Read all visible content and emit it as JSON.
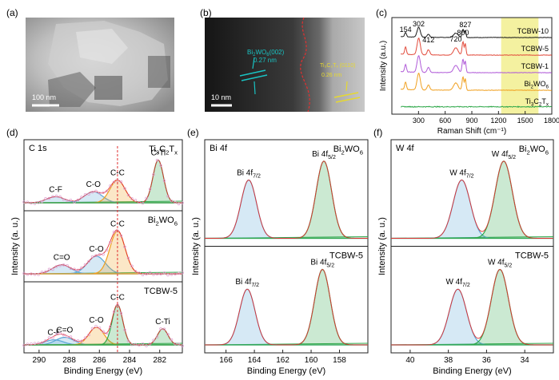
{
  "panel_labels": [
    "(a)",
    "(b)",
    "(c)",
    "(d)",
    "(e)",
    "(f)"
  ],
  "tem_a": {
    "scalebar": "100 nm"
  },
  "tem_b": {
    "scalebar": "10 nm",
    "bwo_label_main": "Bi",
    "bwo_label_sub1": "2",
    "bwo_label_mid": "WO",
    "bwo_label_sub2": "6",
    "bwo_label_plane": "(002)",
    "bwo_spacing": "0.27 nm",
    "tc_label": "Ti₃C₂Tₓ (0110)",
    "tc_spacing": "0.26 nm"
  },
  "colors": {
    "teal": "#19c3c3",
    "yellow": "#e6d830",
    "raman_highlight": "#f4f1a0",
    "fit_blue": "#5aa6d6",
    "fit_green": "#2fa84a",
    "fit_orange": "#f0a020",
    "fit_red": "#e03030",
    "data_pink": "#e0a0d0"
  },
  "chart_data": [
    {
      "id": "c",
      "type": "line",
      "xlabel": "Raman Shift (cm⁻¹)",
      "ylabel": "Intensity (a.u.)",
      "xlim": [
        0,
        1800
      ],
      "xticks": [
        300,
        600,
        900,
        1200,
        1500,
        1800
      ],
      "highlight": [
        1230,
        1650
      ],
      "peak_labels": [
        {
          "x": 154,
          "text": "154"
        },
        {
          "x": 302,
          "text": "302"
        },
        {
          "x": 412,
          "text": "412"
        },
        {
          "x": 720,
          "text": "720"
        },
        {
          "x": 800,
          "text": "800"
        },
        {
          "x": 827,
          "text": "827"
        }
      ],
      "series": [
        {
          "name": "TCBW-10",
          "color": "#1a1a1a",
          "offset": 4
        },
        {
          "name": "TCBW-5",
          "color": "#e24a3b",
          "offset": 3
        },
        {
          "name": "TCBW-1",
          "color": "#b05ad8",
          "offset": 2
        },
        {
          "name": "Bi₂WO₆",
          "color": "#f0a020",
          "offset": 1
        },
        {
          "name": "Ti₃C₂Tₓ",
          "color": "#2fa84a",
          "offset": 0
        }
      ]
    },
    {
      "id": "d",
      "type": "line",
      "title": "C 1s",
      "xlabel": "Binding Energy (eV)",
      "ylabel": "Intensity (a. u.)",
      "xlim": [
        291,
        280.5
      ],
      "xticks": [
        290,
        288,
        286,
        284,
        282
      ],
      "reference_line": 284.8,
      "subpanels": [
        {
          "name": "Ti₃C₂Tₓ",
          "peaks": [
            {
              "center": 288.9,
              "height": 0.12,
              "label": "C-F"
            },
            {
              "center": 286.4,
              "height": 0.22,
              "label": "C-O"
            },
            {
              "center": 284.8,
              "height": 0.45,
              "label": "C-C"
            },
            {
              "center": 282.1,
              "height": 0.85,
              "label": "C-Ti"
            }
          ]
        },
        {
          "name": "Bi₂WO₆",
          "peaks": [
            {
              "center": 288.5,
              "height": 0.18,
              "label": "C=O"
            },
            {
              "center": 286.2,
              "height": 0.35,
              "label": "C-O"
            },
            {
              "center": 284.8,
              "height": 0.85,
              "label": "C-C"
            }
          ]
        },
        {
          "name": "TCBW-5",
          "peaks": [
            {
              "center": 289.0,
              "height": 0.1,
              "label": "C-F"
            },
            {
              "center": 288.3,
              "height": 0.15,
              "label": "C=O"
            },
            {
              "center": 286.2,
              "height": 0.35,
              "label": "C-O"
            },
            {
              "center": 284.8,
              "height": 0.8,
              "label": "C-C"
            },
            {
              "center": 281.8,
              "height": 0.32,
              "label": "C-Ti"
            }
          ]
        }
      ]
    },
    {
      "id": "e",
      "type": "line",
      "title": "Bi 4f",
      "xlabel": "Binding Energy (eV)",
      "ylabel": "Intensity (a. u.)",
      "xlim": [
        167.5,
        156
      ],
      "xticks": [
        166,
        164,
        162,
        160,
        158
      ],
      "subpanels": [
        {
          "name": "Bi₂WO₆",
          "peaks": [
            {
              "center": 164.4,
              "height": 0.68,
              "label": "Bi 4f7/2"
            },
            {
              "center": 159.1,
              "height": 0.9,
              "label": "Bi 4f5/2"
            }
          ]
        },
        {
          "name": "TCBW-5",
          "peaks": [
            {
              "center": 164.5,
              "height": 0.65,
              "label": "Bi 4f7/2"
            },
            {
              "center": 159.2,
              "height": 0.88,
              "label": "Bi 4f5/2"
            }
          ]
        }
      ]
    },
    {
      "id": "f",
      "type": "line",
      "title": "W 4f",
      "xlabel": "Binding Energy (eV)",
      "ylabel": "Intensity (a. u.)",
      "xlim": [
        41,
        32.5
      ],
      "xticks": [
        40,
        38,
        36,
        34
      ],
      "subpanels": [
        {
          "name": "Bi₂WO₆",
          "peaks": [
            {
              "center": 37.3,
              "height": 0.68,
              "label": "W 4f7/2"
            },
            {
              "center": 35.1,
              "height": 0.9,
              "label": "W 4f5/2"
            }
          ]
        },
        {
          "name": "TCBW-5",
          "peaks": [
            {
              "center": 37.5,
              "height": 0.65,
              "label": "W 4f7/2"
            },
            {
              "center": 35.3,
              "height": 0.88,
              "label": "W 4f5/2"
            }
          ]
        }
      ]
    }
  ]
}
